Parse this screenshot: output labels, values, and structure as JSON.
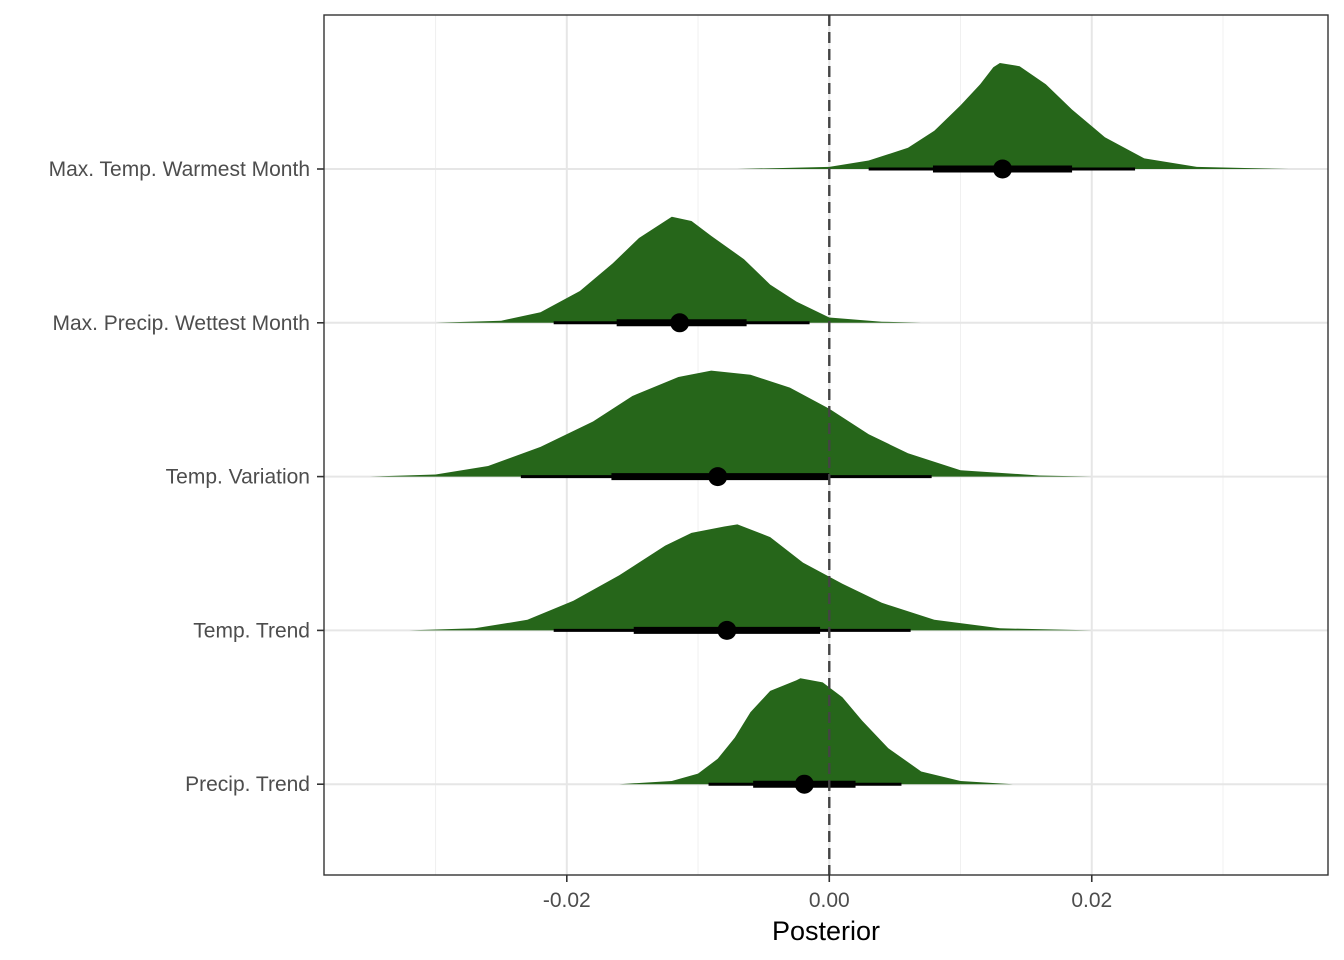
{
  "chart_data": {
    "type": "halfeye",
    "title": "",
    "xlabel": "Posterior",
    "ylabel": "",
    "xlim": [
      -0.0385,
      0.038
    ],
    "x_ticks": [
      -0.02,
      0.0,
      0.02
    ],
    "x_tick_labels": [
      "-0.02",
      "0.00",
      "0.02"
    ],
    "x_minor_ticks": [
      -0.03,
      -0.01,
      0.01,
      0.03
    ],
    "reference_line": 0.0,
    "grid": true,
    "fill_color": "#26661a",
    "point_color": "#000000",
    "categories": [
      "Max. Temp. Warmest Month",
      "Max. Precip. Wettest Month",
      "Temp. Variation",
      "Temp. Trend",
      "Precip. Trend"
    ],
    "series": [
      {
        "name": "Max. Temp. Warmest Month",
        "median": 0.0132,
        "interval_66": [
          0.0079,
          0.0185
        ],
        "interval_95": [
          0.003,
          0.0233
        ],
        "density_range": [
          -0.007,
          0.035
        ],
        "density": [
          {
            "x": -0.007,
            "d": 0.0
          },
          {
            "x": 0.0,
            "d": 0.02
          },
          {
            "x": 0.003,
            "d": 0.08
          },
          {
            "x": 0.006,
            "d": 0.2
          },
          {
            "x": 0.008,
            "d": 0.36
          },
          {
            "x": 0.01,
            "d": 0.6
          },
          {
            "x": 0.0115,
            "d": 0.8
          },
          {
            "x": 0.0125,
            "d": 0.96
          },
          {
            "x": 0.013,
            "d": 1.0
          },
          {
            "x": 0.0145,
            "d": 0.97
          },
          {
            "x": 0.0165,
            "d": 0.8
          },
          {
            "x": 0.0185,
            "d": 0.56
          },
          {
            "x": 0.021,
            "d": 0.3
          },
          {
            "x": 0.024,
            "d": 0.1
          },
          {
            "x": 0.028,
            "d": 0.02
          },
          {
            "x": 0.035,
            "d": 0.0
          }
        ]
      },
      {
        "name": "Max. Precip. Wettest Month",
        "median": -0.0114,
        "interval_66": [
          -0.0162,
          -0.0063
        ],
        "interval_95": [
          -0.021,
          -0.0015
        ],
        "density_range": [
          -0.03,
          0.007
        ],
        "density": [
          {
            "x": -0.03,
            "d": 0.0
          },
          {
            "x": -0.025,
            "d": 0.02
          },
          {
            "x": -0.022,
            "d": 0.1
          },
          {
            "x": -0.019,
            "d": 0.3
          },
          {
            "x": -0.0165,
            "d": 0.56
          },
          {
            "x": -0.0145,
            "d": 0.8
          },
          {
            "x": -0.0125,
            "d": 0.96
          },
          {
            "x": -0.012,
            "d": 1.0
          },
          {
            "x": -0.0105,
            "d": 0.96
          },
          {
            "x": -0.009,
            "d": 0.82
          },
          {
            "x": -0.0065,
            "d": 0.6
          },
          {
            "x": -0.0045,
            "d": 0.36
          },
          {
            "x": -0.0025,
            "d": 0.2
          },
          {
            "x": 0.0,
            "d": 0.05
          },
          {
            "x": 0.004,
            "d": 0.01
          },
          {
            "x": 0.007,
            "d": 0.0
          }
        ]
      },
      {
        "name": "Temp. Variation",
        "median": -0.0085,
        "interval_66": [
          -0.0166,
          0.0
        ],
        "interval_95": [
          -0.0235,
          0.0078
        ],
        "density_range": [
          -0.035,
          0.02
        ],
        "density": [
          {
            "x": -0.035,
            "d": 0.0
          },
          {
            "x": -0.03,
            "d": 0.02
          },
          {
            "x": -0.026,
            "d": 0.1
          },
          {
            "x": -0.022,
            "d": 0.28
          },
          {
            "x": -0.018,
            "d": 0.52
          },
          {
            "x": -0.015,
            "d": 0.76
          },
          {
            "x": -0.0115,
            "d": 0.94
          },
          {
            "x": -0.009,
            "d": 1.0
          },
          {
            "x": -0.006,
            "d": 0.96
          },
          {
            "x": -0.003,
            "d": 0.84
          },
          {
            "x": 0.0,
            "d": 0.64
          },
          {
            "x": 0.003,
            "d": 0.4
          },
          {
            "x": 0.006,
            "d": 0.22
          },
          {
            "x": 0.01,
            "d": 0.06
          },
          {
            "x": 0.016,
            "d": 0.01
          },
          {
            "x": 0.02,
            "d": 0.0
          }
        ]
      },
      {
        "name": "Temp. Trend",
        "median": -0.0078,
        "interval_66": [
          -0.0149,
          -0.0007
        ],
        "interval_95": [
          -0.021,
          0.0062
        ],
        "density_range": [
          -0.032,
          0.02
        ],
        "density": [
          {
            "x": -0.032,
            "d": 0.0
          },
          {
            "x": -0.027,
            "d": 0.02
          },
          {
            "x": -0.023,
            "d": 0.1
          },
          {
            "x": -0.0195,
            "d": 0.28
          },
          {
            "x": -0.016,
            "d": 0.52
          },
          {
            "x": -0.0125,
            "d": 0.8
          },
          {
            "x": -0.0105,
            "d": 0.92
          },
          {
            "x": -0.008,
            "d": 0.98
          },
          {
            "x": -0.007,
            "d": 1.0
          },
          {
            "x": -0.0045,
            "d": 0.88
          },
          {
            "x": -0.002,
            "d": 0.64
          },
          {
            "x": 0.001,
            "d": 0.44
          },
          {
            "x": 0.004,
            "d": 0.26
          },
          {
            "x": 0.008,
            "d": 0.1
          },
          {
            "x": 0.013,
            "d": 0.02
          },
          {
            "x": 0.02,
            "d": 0.0
          }
        ]
      },
      {
        "name": "Precip. Trend",
        "median": -0.0019,
        "interval_66": [
          -0.0058,
          0.002
        ],
        "interval_95": [
          -0.0092,
          0.0055
        ],
        "density_range": [
          -0.016,
          0.014
        ],
        "density": [
          {
            "x": -0.016,
            "d": 0.0
          },
          {
            "x": -0.012,
            "d": 0.03
          },
          {
            "x": -0.01,
            "d": 0.1
          },
          {
            "x": -0.0085,
            "d": 0.24
          },
          {
            "x": -0.0072,
            "d": 0.44
          },
          {
            "x": -0.006,
            "d": 0.68
          },
          {
            "x": -0.0045,
            "d": 0.88
          },
          {
            "x": -0.0025,
            "d": 0.98
          },
          {
            "x": -0.0022,
            "d": 1.0
          },
          {
            "x": -0.0005,
            "d": 0.96
          },
          {
            "x": 0.001,
            "d": 0.82
          },
          {
            "x": 0.0025,
            "d": 0.6
          },
          {
            "x": 0.0045,
            "d": 0.34
          },
          {
            "x": 0.007,
            "d": 0.12
          },
          {
            "x": 0.01,
            "d": 0.03
          },
          {
            "x": 0.014,
            "d": 0.0
          }
        ]
      }
    ]
  }
}
